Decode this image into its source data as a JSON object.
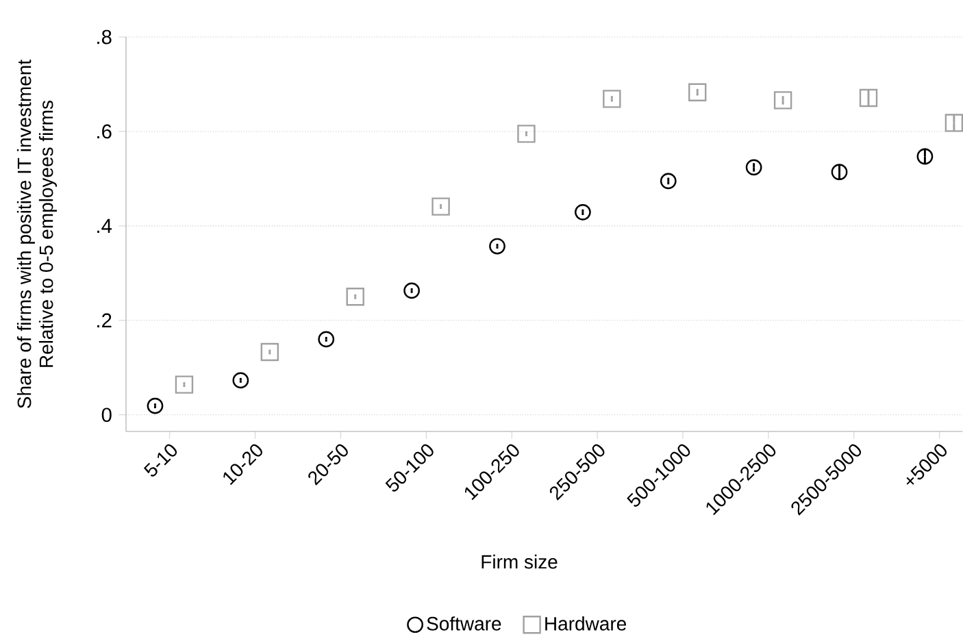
{
  "chart_data": {
    "type": "scatter",
    "xlabel": "Firm size",
    "ylabel": [
      "Share of firms with positive IT investment",
      "Relative to 0-5 employees firms"
    ],
    "categories": [
      "5-10",
      "10-20",
      "20-50",
      "50-100",
      "100-250",
      "250-500",
      "500-1000",
      "1000-2500",
      "2500-5000",
      "+5000"
    ],
    "series": [
      {
        "name": "Software",
        "color": "#000000",
        "marker": "circle",
        "values": [
          0.019,
          0.073,
          0.16,
          0.263,
          0.357,
          0.429,
          0.495,
          0.524,
          0.514,
          0.547
        ],
        "errors": [
          0.005,
          0.005,
          0.005,
          0.005,
          0.005,
          0.006,
          0.007,
          0.009,
          0.015,
          0.017
        ]
      },
      {
        "name": "Hardware",
        "color": "#a0a0a0",
        "marker": "square",
        "values": [
          0.064,
          0.133,
          0.25,
          0.441,
          0.595,
          0.669,
          0.683,
          0.666,
          0.671,
          0.618
        ],
        "errors": [
          0.005,
          0.005,
          0.005,
          0.005,
          0.005,
          0.006,
          0.007,
          0.009,
          0.016,
          0.018
        ]
      }
    ],
    "ylim": [
      0,
      0.8
    ],
    "yticks": [
      0,
      {
        "value": 0.2,
        "label": ".2"
      },
      {
        "value": 0.4,
        "label": ".4"
      },
      {
        "value": 0.6,
        "label": ".6"
      },
      {
        "value": 0.8,
        "label": ".8"
      }
    ],
    "grid": "y",
    "legend": "bottom"
  }
}
